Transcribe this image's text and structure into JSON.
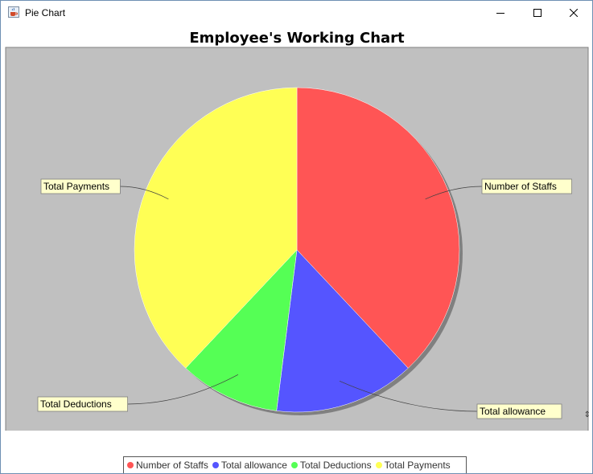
{
  "window": {
    "title": "Pie Chart",
    "icon": "java-cup-icon",
    "controls": [
      "minimize-icon",
      "maximize-icon",
      "close-icon"
    ]
  },
  "colors": {
    "plot_background": "#c0c0c0",
    "label_background": "#ffffcc"
  },
  "chart_data": {
    "type": "pie",
    "title": "Employee's Working Chart",
    "labels_in_chart": true,
    "legend": "bottom",
    "slices": [
      {
        "label": "Number of Staffs",
        "value": 38,
        "color": "#ff5555"
      },
      {
        "label": "Total allowance",
        "value": 14,
        "color": "#5555ff"
      },
      {
        "label": "Total Deductions",
        "value": 10,
        "color": "#55ff55"
      },
      {
        "label": "Total Payments",
        "value": 38,
        "color": "#ffff55"
      }
    ]
  }
}
